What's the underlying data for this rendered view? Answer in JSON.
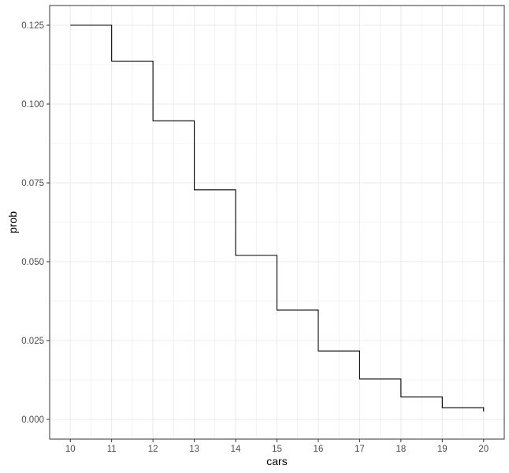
{
  "chart_data": {
    "type": "line",
    "step": true,
    "xlabel": "cars",
    "ylabel": "prob",
    "xlim": [
      10,
      20
    ],
    "ylim": [
      0,
      0.125
    ],
    "xticks": [
      10,
      11,
      12,
      13,
      14,
      15,
      16,
      17,
      18,
      19,
      20
    ],
    "yticks": [
      "0.000",
      "0.025",
      "0.050",
      "0.075",
      "0.100",
      "0.125"
    ],
    "grid": true,
    "theme": "bw",
    "series": [
      {
        "x": [
          10,
          11,
          12,
          13,
          14,
          15,
          16,
          17,
          18,
          19,
          20
        ],
        "values": [
          0.125,
          0.1136,
          0.0947,
          0.0728,
          0.052,
          0.0347,
          0.0217,
          0.0128,
          0.0071,
          0.0037,
          0.0025
        ]
      }
    ]
  },
  "colors": {
    "line": "#000000",
    "grid": "#ebebeb",
    "panel_border": "#333333",
    "tick_text": "#4d4d4d"
  }
}
